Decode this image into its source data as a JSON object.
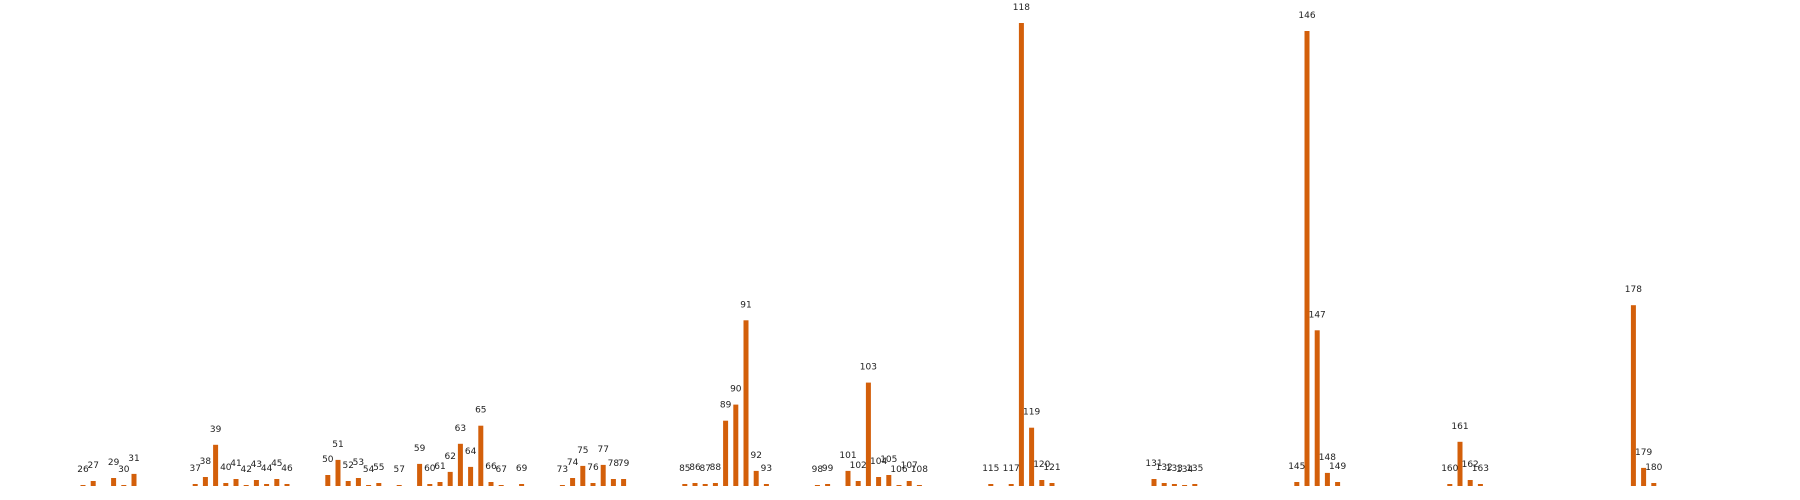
{
  "chart_data": {
    "type": "bar",
    "title": "",
    "xlabel": "",
    "ylabel": "",
    "grid": false,
    "legend": "none",
    "bar_color": "#d35f0a",
    "ylim": [
      0,
      480
    ],
    "categories": [
      "26",
      "27",
      "29",
      "30",
      "31",
      "37",
      "38",
      "39",
      "40",
      "41",
      "42",
      "43",
      "44",
      "45",
      "46",
      "50",
      "51",
      "52",
      "53",
      "54",
      "55",
      "57",
      "59",
      "60",
      "61",
      "62",
      "63",
      "64",
      "65",
      "66",
      "67",
      "69",
      "73",
      "74",
      "75",
      "76",
      "77",
      "78",
      "79",
      "85",
      "86",
      "87",
      "88",
      "89",
      "90",
      "91",
      "92",
      "93",
      "98",
      "99",
      "101",
      "102",
      "103",
      "104",
      "105",
      "106",
      "107",
      "108",
      "115",
      "117",
      "118",
      "119",
      "120",
      "121",
      "131",
      "132",
      "133",
      "134",
      "135",
      "145",
      "146",
      "147",
      "148",
      "149",
      "160",
      "161",
      "162",
      "163",
      "178",
      "179",
      "180"
    ],
    "values": [
      1,
      5,
      8,
      1,
      12,
      2,
      9,
      41,
      3,
      7,
      1,
      6,
      2,
      7,
      2,
      11,
      26,
      5,
      8,
      1,
      3,
      1,
      22,
      2,
      4,
      14,
      42,
      19,
      60,
      4,
      1,
      2,
      1,
      8,
      20,
      3,
      21,
      7,
      7,
      2,
      3,
      2,
      3,
      65,
      81,
      165,
      15,
      2,
      1,
      2,
      15,
      5,
      103,
      9,
      11,
      1,
      5,
      1,
      2,
      2,
      461,
      58,
      6,
      3,
      7,
      3,
      2,
      1,
      2,
      4,
      453,
      155,
      13,
      4,
      2,
      44,
      6,
      2,
      180,
      18,
      3
    ]
  }
}
